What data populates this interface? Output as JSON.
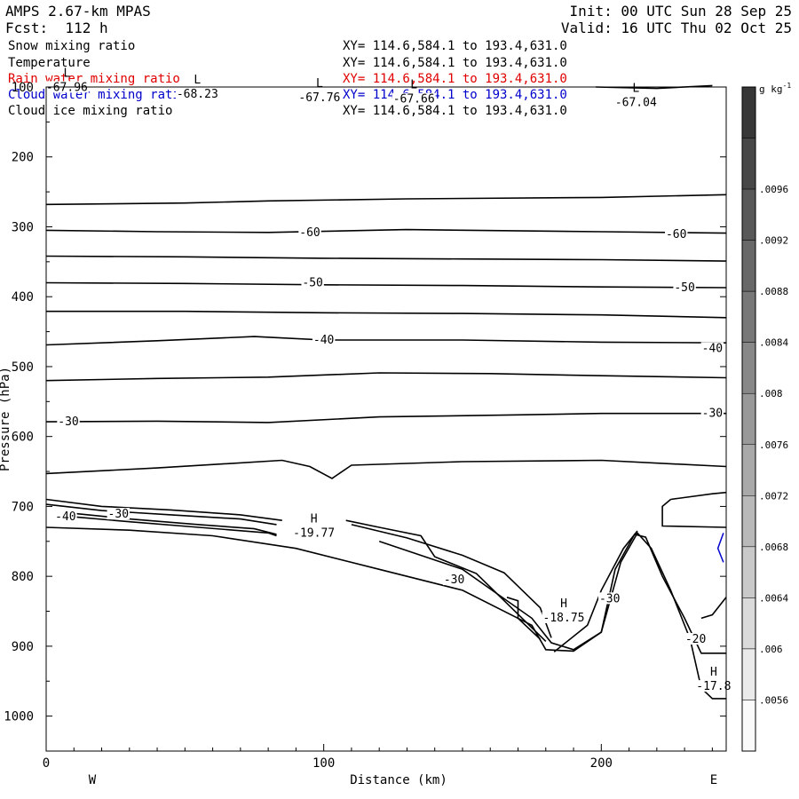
{
  "header": {
    "model": "AMPS 2.67-km MPAS",
    "forecast": "Fcst:  112 h",
    "init": "Init: 00 UTC Sun 28 Sep 25",
    "valid": "Valid: 16 UTC Thu 02 Oct 25"
  },
  "fields": [
    {
      "name": "Snow mixing ratio",
      "xy": "XY= 114.6,584.1 to 193.4,631.0",
      "color": "#000000"
    },
    {
      "name": "Temperature",
      "xy": "XY= 114.6,584.1 to 193.4,631.0",
      "color": "#000000"
    },
    {
      "name": "Rain water mixing ratio",
      "xy": "XY= 114.6,584.1 to 193.4,631.0",
      "color": "#e00000"
    },
    {
      "name": "Cloud water mixing ratio",
      "xy": "XY= 114.6,584.1 to 193.4,631.0",
      "color": "#0000cc"
    },
    {
      "name": "Cloud ice mixing ratio",
      "xy": "XY= 114.6,584.1 to 193.4,631.0",
      "color": "#000000"
    }
  ],
  "chart_data": {
    "type": "cross-section contour",
    "xlabel": "Distance (km)",
    "ylabel": "Pressure (hPa)",
    "xlim": [
      0,
      245
    ],
    "ylim": [
      1050,
      100
    ],
    "xticks": [
      0,
      100,
      200
    ],
    "yticks": [
      100,
      200,
      300,
      400,
      500,
      600,
      700,
      800,
      900,
      1000
    ],
    "direction_labels": {
      "left": "W",
      "right": "E"
    },
    "colorbar": {
      "unit": "g kg",
      "unit_exp": "-1",
      "levels": [
        ".0096",
        ".0092",
        ".0088",
        ".0084",
        ".008",
        ".0076",
        ".0072",
        ".0068",
        ".0064",
        ".006",
        ".0056"
      ]
    },
    "temperature_contours": [
      {
        "points": [
          [
            0,
            268
          ],
          [
            50,
            266
          ],
          [
            80,
            263
          ],
          [
            130,
            260
          ],
          [
            200,
            258
          ],
          [
            245,
            254
          ]
        ]
      },
      {
        "points": [
          [
            0,
            305
          ],
          [
            40,
            307
          ],
          [
            80,
            308
          ],
          [
            130,
            304
          ],
          [
            200,
            307
          ],
          [
            245,
            309
          ]
        ],
        "label": "-60",
        "label_at": [
          [
            95,
            308
          ],
          [
            227,
            311
          ]
        ]
      },
      {
        "points": [
          [
            0,
            342
          ],
          [
            50,
            343
          ],
          [
            100,
            345
          ],
          [
            150,
            346
          ],
          [
            200,
            347
          ],
          [
            245,
            349
          ]
        ]
      },
      {
        "points": [
          [
            0,
            380
          ],
          [
            50,
            381
          ],
          [
            100,
            383
          ],
          [
            150,
            384
          ],
          [
            200,
            386
          ],
          [
            245,
            387
          ]
        ],
        "label": "-50",
        "label_at": [
          [
            96,
            380
          ],
          [
            230,
            387
          ]
        ]
      },
      {
        "points": [
          [
            0,
            421
          ],
          [
            50,
            421
          ],
          [
            100,
            423
          ],
          [
            150,
            424
          ],
          [
            200,
            426
          ],
          [
            245,
            430
          ]
        ]
      },
      {
        "points": [
          [
            0,
            469
          ],
          [
            40,
            463
          ],
          [
            75,
            457
          ],
          [
            100,
            462
          ],
          [
            150,
            462
          ],
          [
            200,
            465
          ],
          [
            245,
            466
          ]
        ],
        "label": "-40",
        "label_at": [
          [
            100,
            462
          ],
          [
            240,
            474
          ]
        ]
      },
      {
        "points": [
          [
            0,
            520
          ],
          [
            40,
            517
          ],
          [
            80,
            515
          ],
          [
            120,
            509
          ],
          [
            160,
            510
          ],
          [
            200,
            513
          ],
          [
            245,
            516
          ]
        ]
      },
      {
        "points": [
          [
            0,
            579
          ],
          [
            40,
            578
          ],
          [
            80,
            580
          ],
          [
            120,
            572
          ],
          [
            170,
            569
          ],
          [
            200,
            567
          ],
          [
            245,
            567
          ]
        ],
        "label": "-30",
        "label_at": [
          [
            8,
            579
          ],
          [
            240,
            567
          ]
        ]
      },
      {
        "points": [
          [
            0,
            653
          ],
          [
            40,
            645
          ],
          [
            85,
            634
          ],
          [
            95,
            643
          ],
          [
            103,
            660
          ],
          [
            110,
            641
          ],
          [
            150,
            636
          ],
          [
            200,
            634
          ],
          [
            245,
            643
          ]
        ]
      }
    ],
    "high_low_labels": [
      {
        "type": "L",
        "value": "-67.96",
        "at": [
          3,
          103
        ]
      },
      {
        "type": "L",
        "value": "-68.23",
        "at": [
          50,
          113
        ]
      },
      {
        "type": "L",
        "value": "-67.76",
        "at": [
          94,
          118
        ]
      },
      {
        "type": "L",
        "value": "-67.66",
        "at": [
          128,
          120
        ]
      },
      {
        "type": "L",
        "value": "-67.04",
        "at": [
          208,
          125
        ]
      },
      {
        "type": "H",
        "value": "-19.77",
        "at": [
          92,
          741
        ]
      },
      {
        "type": "H",
        "value": "-18.75",
        "at": [
          182,
          862
        ]
      },
      {
        "type": "H",
        "value": "-17.8",
        "at": [
          236,
          960
        ]
      }
    ],
    "low_level_labels": [
      {
        "value": "-40",
        "at": [
          7,
          715
        ]
      },
      {
        "value": "-30",
        "at": [
          26,
          711
        ]
      },
      {
        "value": "-30",
        "at": [
          147,
          805
        ]
      },
      {
        "value": "-30",
        "at": [
          203,
          832
        ]
      },
      {
        "value": "-20",
        "at": [
          234,
          890
        ]
      }
    ]
  }
}
